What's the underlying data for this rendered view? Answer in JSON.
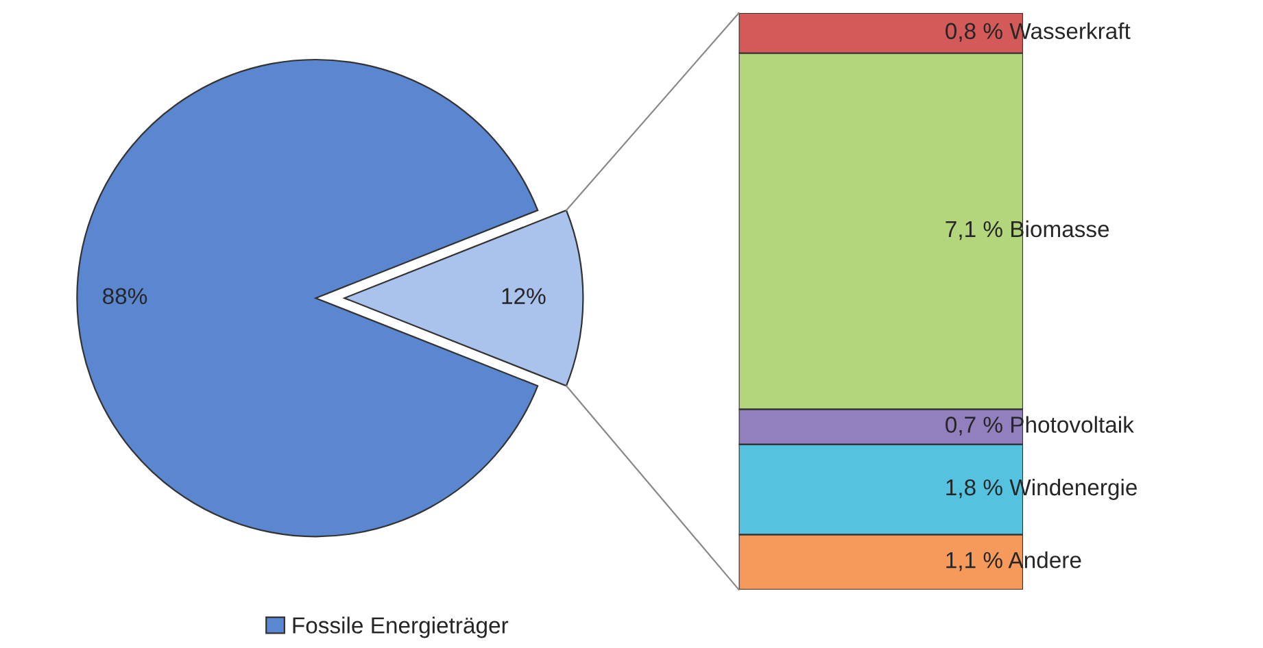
{
  "chart_data": [
    {
      "type": "pie",
      "categories": [
        "Fossile Energieträger",
        null
      ],
      "values": [
        88,
        12
      ],
      "colors": [
        "#5a87cf",
        "#a9c3ec"
      ],
      "value_labels": [
        "88%",
        "12%"
      ],
      "legend": "bottom"
    },
    {
      "type": "bar",
      "stacked": true,
      "categories": [
        null
      ],
      "series": [
        {
          "name": "Andere",
          "color": "#f59a5a",
          "values": [
            1.1
          ],
          "value_labels": [
            "1,1 %"
          ]
        },
        {
          "name": "Windenergie",
          "color": "#55c3df",
          "values": [
            1.8
          ],
          "value_labels": [
            "1,8 %"
          ]
        },
        {
          "name": "Photovoltaik",
          "color": "#9180bd",
          "values": [
            0.7
          ],
          "value_labels": [
            "0,7 %"
          ]
        },
        {
          "name": "Biomasse",
          "color": "#b3d57c",
          "values": [
            7.1
          ],
          "value_labels": [
            "7,1 %"
          ]
        },
        {
          "name": "Wasserkraft",
          "color": "#d45a5a",
          "values": [
            0.8
          ],
          "value_labels": [
            "0,8 %"
          ]
        }
      ]
    }
  ]
}
